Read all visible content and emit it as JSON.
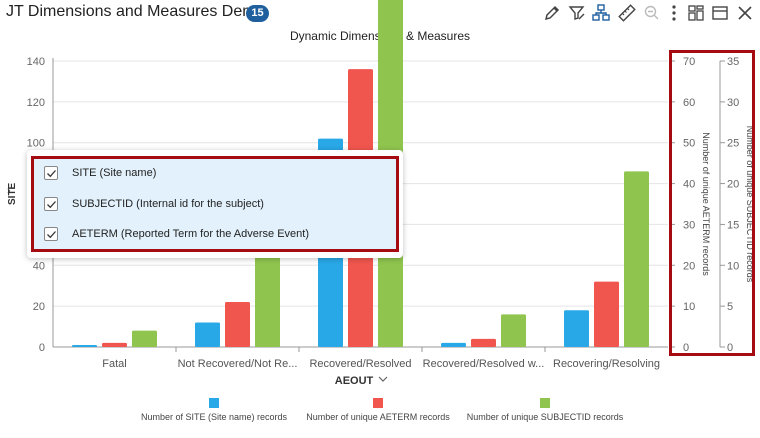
{
  "header": {
    "title": "JT Dimensions and Measures Demo",
    "badge": "15"
  },
  "toolbar": {
    "icons": [
      "pencil-icon",
      "filter-edit-icon",
      "hierarchy-icon",
      "ruler-icon",
      "zoom-out-icon",
      "more-icon",
      "layout-icon",
      "window-icon",
      "close-icon"
    ]
  },
  "chart_data": {
    "type": "bar",
    "title": "Dynamic Dimensions & Measures",
    "categories": [
      "Fatal",
      "Not Recovered/Not Re...",
      "Recovered/Resolved",
      "Recovered/Resolved w...",
      "Recovering/Resolving"
    ],
    "xlabel": "AEOUT",
    "ylabel": "SITE",
    "ylim": [
      0,
      140
    ],
    "yticks": [
      "0",
      "20",
      "40",
      "60",
      "80",
      "100",
      "120",
      "140"
    ],
    "series": [
      {
        "name": "Number of SITE  (Site name) records",
        "color": "#29a8e8",
        "axis": "left",
        "values": [
          1,
          12,
          102,
          2,
          18
        ]
      },
      {
        "name": "Number of unique AETERM records",
        "color": "#f0564e",
        "axis": "right1",
        "values": [
          1,
          11,
          68,
          2,
          16
        ]
      },
      {
        "name": "Number of unique SUBJECTID records",
        "color": "#8fc54e",
        "axis": "right2",
        "values": [
          2,
          12,
          50,
          4,
          21.5
        ]
      }
    ],
    "y2": {
      "label": "Number of unique AETERM records",
      "ylim": [
        0,
        70
      ],
      "ticks": [
        "0",
        "10",
        "20",
        "30",
        "40",
        "50",
        "60",
        "70"
      ]
    },
    "y3": {
      "label": "Number of unique SUBJECTID records",
      "ylim": [
        0,
        35
      ],
      "ticks": [
        "0",
        "5",
        "10",
        "15",
        "20",
        "25",
        "30",
        "35"
      ]
    },
    "grid": true,
    "legend_position": "bottom"
  },
  "dimension_popup": {
    "options": [
      {
        "label": "SITE (Site name)",
        "checked": true
      },
      {
        "label": "SUBJECTID (Internal id for the subject)",
        "checked": true
      },
      {
        "label": "AETERM (Reported Term for the Adverse Event)",
        "checked": true
      }
    ]
  }
}
